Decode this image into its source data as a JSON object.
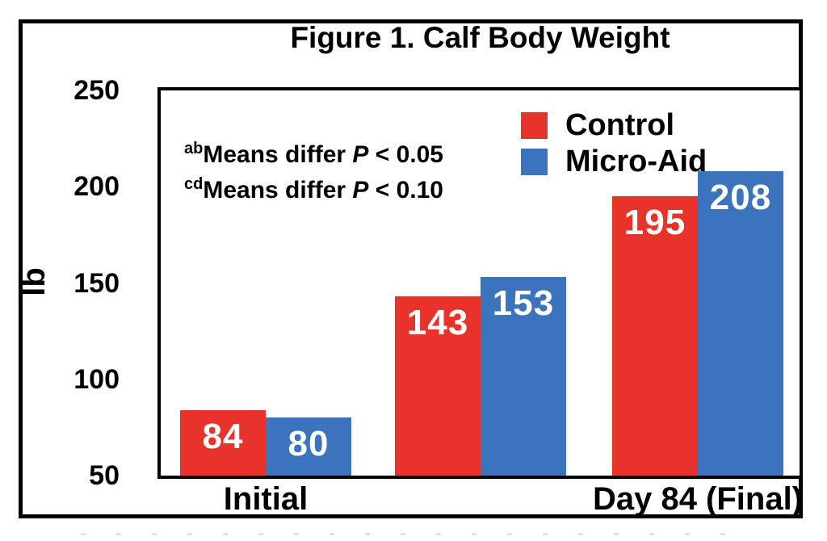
{
  "figure": {
    "title": "Figure 1. Calf Body Weight"
  },
  "annotations": [
    {
      "sup": "ab",
      "body": "Means differ ",
      "pvar": "P",
      "tail": " < 0.05"
    },
    {
      "sup": "cd",
      "body": "Means differ ",
      "pvar": "P",
      "tail": " < 0.10"
    }
  ],
  "legend": [
    {
      "label": "Control",
      "color": "#e8332a"
    },
    {
      "label": "Micro-Aid",
      "color": "#3b74bc"
    }
  ],
  "chart_data": {
    "type": "bar",
    "title": "Figure 1. Calf Body Weight",
    "xlabel": "",
    "ylabel": "lb",
    "ylim": [
      50,
      250
    ],
    "yticks": [
      250,
      200,
      150,
      100,
      50
    ],
    "categories": [
      "Initial",
      "",
      "Day 84 (Final)"
    ],
    "x_labels": [
      {
        "group": 0,
        "text": "Initial"
      },
      {
        "group": 2,
        "text": "Day 84 (Final)"
      }
    ],
    "series": [
      {
        "name": "Control",
        "color": "#e8332a",
        "values": [
          84,
          143,
          195
        ]
      },
      {
        "name": "Micro-Aid",
        "color": "#3b74bc",
        "values": [
          80,
          153,
          208
        ]
      }
    ],
    "bar_label_color": "#ffffff",
    "grid": false,
    "legend_position": "upper-right-inside",
    "notes": [
      "abMeans differ P < 0.05",
      "cdMeans differ P < 0.10"
    ]
  }
}
